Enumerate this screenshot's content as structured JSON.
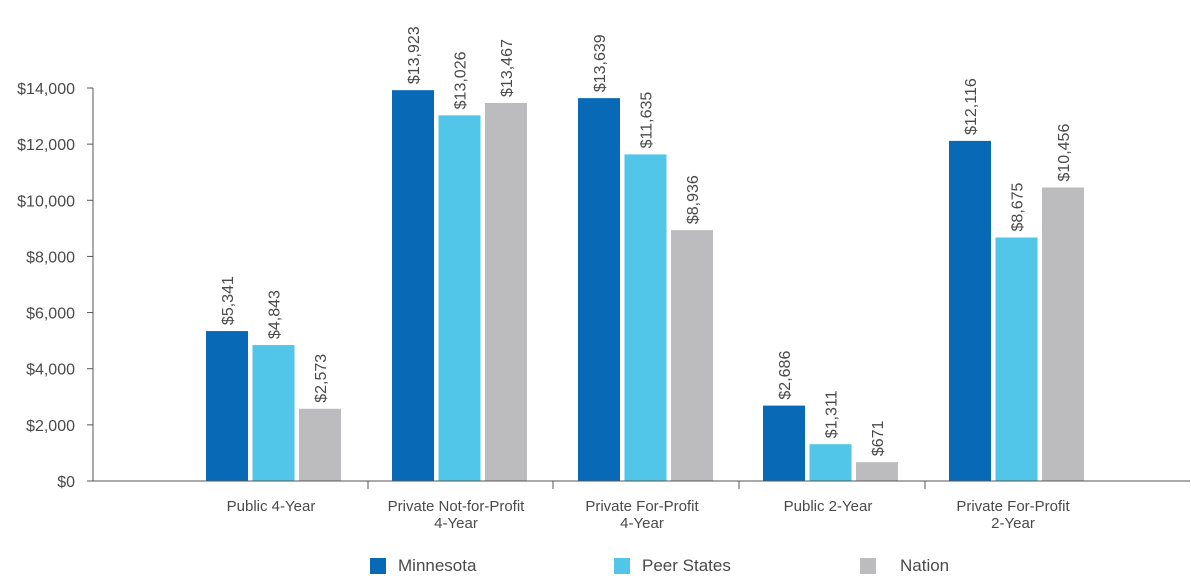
{
  "chart_data": {
    "type": "bar",
    "categories": [
      [
        "Public 4-Year"
      ],
      [
        "Private Not-for-Profit",
        "4-Year"
      ],
      [
        "Private For-Profit",
        "4-Year"
      ],
      [
        "Public 2-Year"
      ],
      [
        "Private For-Profit",
        "2-Year"
      ]
    ],
    "series": [
      {
        "name": "Minnesota",
        "color": "#0869b6",
        "values": [
          5341,
          13923,
          13639,
          2686,
          12116
        ],
        "labels": [
          "$5,341",
          "$13,923",
          "$13,639",
          "$2,686",
          "$12,116"
        ]
      },
      {
        "name": "Peer States",
        "color": "#52c6e8",
        "values": [
          4843,
          13026,
          11635,
          1311,
          8675
        ],
        "labels": [
          "$4,843",
          "$13,026",
          "$11,635",
          "$1,311",
          "$8,675"
        ]
      },
      {
        "name": "Nation",
        "color": "#bcbcbe",
        "values": [
          2573,
          13467,
          8936,
          671,
          10456
        ],
        "labels": [
          "$2,573",
          "$13,467",
          "$8,936",
          "$671",
          "$10,456"
        ]
      }
    ],
    "yticks": [
      0,
      2000,
      4000,
      6000,
      8000,
      10000,
      12000,
      14000
    ],
    "ytick_labels": [
      "$0",
      "$2,000",
      "$4,000",
      "$6,000",
      "$8,000",
      "$10,000",
      "$12,000",
      "$14,000"
    ],
    "ylim": [
      0,
      14000
    ],
    "grid": false,
    "legend_position": "bottom",
    "title": "",
    "xlabel": "",
    "ylabel": ""
  }
}
